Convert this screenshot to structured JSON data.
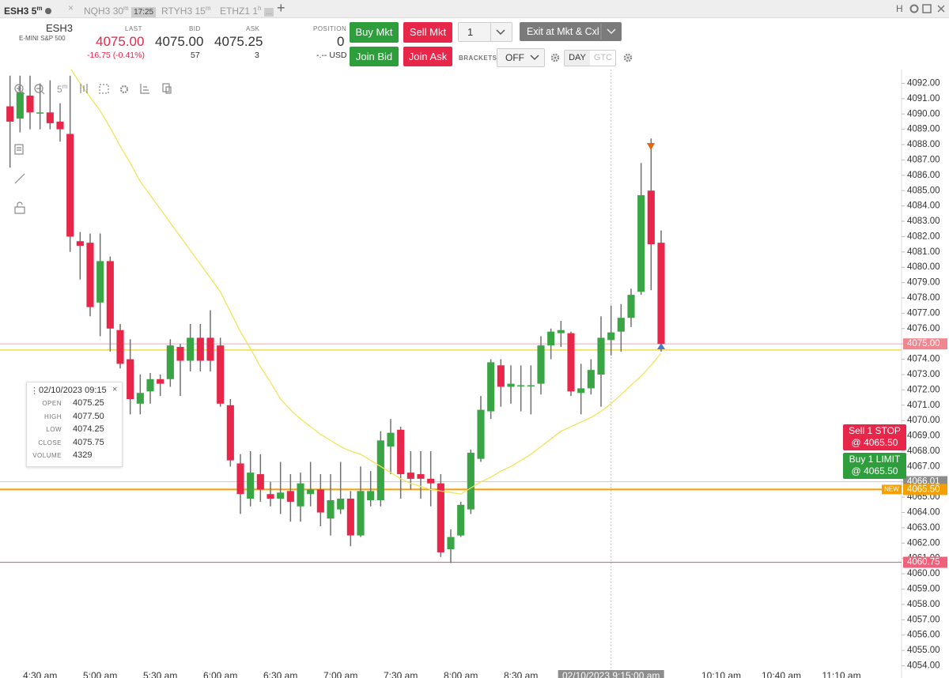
{
  "tabs": [
    {
      "symbol": "ESH3",
      "interval": "5",
      "unit": "m"
    },
    {
      "symbol": "NQH3",
      "interval": "30",
      "unit": "m",
      "time": "17:25"
    },
    {
      "symbol": "RTYH3",
      "interval": "15",
      "unit": "m"
    },
    {
      "symbol": "ETHZ1",
      "interval": "1",
      "unit": "h",
      "more": "..."
    }
  ],
  "toolbar_right": "H",
  "instrument": {
    "symbol": "ESH3",
    "name": "E-MINI S&P 500"
  },
  "quote": {
    "last_label": "LAST",
    "last": "4075.00",
    "change": "-16.75 (-0.41%)",
    "bid_label": "BID",
    "bid": "4075.00",
    "bid_size": "57",
    "ask_label": "ASK",
    "ask": "4075.25",
    "ask_size": "3",
    "position_label": "POSITION",
    "position": "0",
    "pnl": "-.-- USD"
  },
  "buttons": {
    "buy_mkt": "Buy Mkt",
    "sell_mkt": "Sell Mkt",
    "join_bid": "Join Bid",
    "join_ask": "Join Ask",
    "quantity": "1",
    "exit": "Exit at Mkt & Cxl",
    "brackets_label": "BRACKETS",
    "brackets": "OFF",
    "day": "DAY",
    "gtc": "GTC"
  },
  "chart_interval": {
    "value": "5",
    "unit": "m"
  },
  "tooltip": {
    "title": "02/10/2023 09:15",
    "rows": [
      [
        "OPEN",
        "4075.25"
      ],
      [
        "HIGH",
        "4077.50"
      ],
      [
        "LOW",
        "4074.25"
      ],
      [
        "CLOSE",
        "4075.75"
      ],
      [
        "VOLUME",
        "4329"
      ]
    ]
  },
  "orders": [
    {
      "label": "Sell 1 STOP",
      "price": "@ 4065.50",
      "color": "#e8264a"
    },
    {
      "label": "Buy 1 LIMIT",
      "price": "@ 4065.50",
      "color": "#2e9e3c"
    }
  ],
  "chart_data": {
    "type": "candlestick",
    "x": [
      255,
      260,
      265,
      270,
      275,
      280,
      285,
      290,
      295,
      300,
      305,
      310,
      315,
      320,
      325,
      330,
      335,
      340,
      345,
      350,
      355,
      360,
      365,
      370,
      375,
      380,
      385,
      390,
      395,
      400,
      405,
      410,
      415,
      420,
      425,
      430,
      435,
      440,
      445,
      450,
      455,
      460,
      465,
      470,
      475,
      480,
      485,
      490,
      495,
      500,
      505,
      510,
      515,
      520,
      525,
      530,
      535,
      540,
      545,
      550,
      555,
      560,
      565,
      570,
      575,
      580
    ],
    "open": [
      4090.5,
      4089.7,
      4091.2,
      4090.1,
      4090.1,
      4089.5,
      4088.7,
      4081.7,
      4081.6,
      4077.7,
      4080.4,
      4075.9,
      4074,
      4071.1,
      4071.9,
      4072.7,
      4072.7,
      4074.8,
      4073.9,
      4075.4,
      4075.4,
      4074.9,
      4071,
      4067.2,
      4064.9,
      4066.5,
      4065.2,
      4064.9,
      4065.4,
      4064.4,
      4065.2,
      4065.5,
      4063.6,
      4064.2,
      4064.9,
      4062.5,
      4064.8,
      4064.8,
      4068.3,
      4069.4,
      4066.6,
      4066.5,
      4066.2,
      4065.9,
      4061.6,
      4062.5,
      4064.2,
      4067.5,
      4070.6,
      4073.6,
      4072.2,
      4072.3,
      4072.3,
      4072.4,
      4074.9,
      4075.7,
      4075.7,
      4071.8,
      4072.1,
      4073,
      4075.25,
      4075.8,
      4076.7,
      4078.4,
      4085,
      4081.6
    ],
    "high": [
      4092.5,
      4092.5,
      4092.5,
      4092,
      4092.2,
      4090.7,
      4092.5,
      4082.3,
      4082.2,
      4082.2,
      4080.7,
      4076.3,
      4075.3,
      4073,
      4073.1,
      4073,
      4075.3,
      4075,
      4076.3,
      4076.3,
      4077.2,
      4075.4,
      4071.4,
      4067.8,
      4068,
      4067.8,
      4066,
      4067.3,
      4066.5,
      4066.6,
      4067.3,
      4066.5,
      4066.5,
      4067.3,
      4065.4,
      4067,
      4066.7,
      4069.3,
      4070.1,
      4069.6,
      4068,
      4068,
      4068,
      4066.5,
      4062.9,
      4064.7,
      4068.1,
      4071.6,
      4074,
      4074,
      4073.6,
      4073.6,
      4073.6,
      4075.5,
      4076,
      4076.5,
      4075.8,
      4073.7,
      4074,
      4076.8,
      4077.5,
      4077.6,
      4078.6,
      4086.8,
      4088.4,
      4082.4
    ],
    "low": [
      4086.5,
      4088.8,
      4089,
      4089,
      4089,
      4088.2,
      4081,
      4079.2,
      4076.8,
      4075.5,
      4074.5,
      4073.4,
      4070.4,
      4070.4,
      4071.1,
      4071.6,
      4072.2,
      4071.6,
      4073.2,
      4073.2,
      4073.2,
      4070.9,
      4067,
      4063.9,
      4064.4,
      4064.7,
      4064.4,
      4063.9,
      4063.4,
      4063.4,
      4064.4,
      4063.1,
      4062.5,
      4063.9,
      4061.8,
      4062.4,
      4064.4,
      4064.4,
      4066.5,
      4064.9,
      4065.5,
      4064.9,
      4064.4,
      4061.1,
      4060.7,
      4062.4,
      4063.9,
      4067.3,
      4070.1,
      4070.9,
      4071.1,
      4070.6,
      4070.4,
      4071.7,
      4074,
      4074.8,
      4071.6,
      4070.4,
      4071.7,
      4070.9,
      4074.25,
      4074.5,
      4076.1,
      4078.2,
      4078.5,
      4074.5
    ],
    "close": [
      4089.5,
      4091.4,
      4090.1,
      4090.1,
      4089.4,
      4089,
      4082,
      4081.4,
      4077.4,
      4080.4,
      4076,
      4073.7,
      4071.4,
      4071.8,
      4072.7,
      4072.4,
      4074.9,
      4073.9,
      4075.4,
      4073.9,
      4073.9,
      4071.1,
      4067.4,
      4065.2,
      4066.6,
      4065.5,
      4064.9,
      4065.3,
      4064.7,
      4065.9,
      4065.5,
      4064,
      4064.8,
      4064.9,
      4062.5,
      4065.4,
      4065.4,
      4068.7,
      4069.2,
      4066.5,
      4066.2,
      4066.2,
      4065.9,
      4061.4,
      4062.4,
      4064.5,
      4067.9,
      4070.7,
      4073.8,
      4072.2,
      4072.4,
      4072.3,
      4072.3,
      4074.9,
      4075.8,
      4075.9,
      4071.9,
      4072.1,
      4073.3,
      4075.4,
      4075.75,
      4076.7,
      4078.2,
      4084.7,
      4081.5,
      4075
    ],
    "up_color": "#3aa545",
    "down_color": "#e8264a",
    "ma": {
      "color": "#f2e35a",
      "values": [
        null,
        null,
        null,
        null,
        null,
        null,
        4093,
        4092,
        4091.1,
        4090.2,
        4089.1,
        4087.9,
        4086.8,
        4085.6,
        4084.7,
        4083.8,
        4082.9,
        4082,
        4081.1,
        4080.2,
        4079.3,
        4078.4,
        4077.1,
        4075.8,
        4074.7,
        4073.5,
        4072.5,
        4071.4,
        4070.7,
        4070.1,
        4069.6,
        4069.1,
        4068.7,
        4068.3,
        4068,
        4067.8,
        4067.4,
        4067,
        4066.6,
        4066.2,
        4065.9,
        4065.7,
        4065.5,
        4065.4,
        4065.3,
        4065.2,
        4065.6,
        4066,
        4066.3,
        4066.7,
        4067,
        4067.4,
        4067.8,
        4068.3,
        4068.8,
        4069.3,
        4069.6,
        4069.9,
        4070.2,
        4070.6,
        4071.1,
        4071.7,
        4072.3,
        4072.9,
        4073.6,
        4074.4
      ]
    },
    "xlim": [
      250,
      700
    ],
    "xticks": [
      {
        "value": 270,
        "label": "4:30 am"
      },
      {
        "value": 300,
        "label": "5:00 am"
      },
      {
        "value": 330,
        "label": "5:30 am"
      },
      {
        "value": 360,
        "label": "6:00 am"
      },
      {
        "value": 390,
        "label": "6:30 am"
      },
      {
        "value": 420,
        "label": "7:00 am"
      },
      {
        "value": 450,
        "label": "7:30 am"
      },
      {
        "value": 480,
        "label": "8:00 am"
      },
      {
        "value": 510,
        "label": "8:30 am"
      },
      {
        "value": 610,
        "label": "10:10 am"
      },
      {
        "value": 640,
        "label": "10:40 am"
      },
      {
        "value": 670,
        "label": "11:10 am"
      }
    ],
    "crosshair": {
      "value": 555,
      "label": "02/10/2023 9:15:00 am"
    },
    "ylim": [
      4053.2,
      4092.9
    ],
    "yticks": [
      {
        "value": 4054,
        "label": "4054.00"
      },
      {
        "value": 4055,
        "label": "4055.00"
      },
      {
        "value": 4056,
        "label": "4056.00"
      },
      {
        "value": 4057,
        "label": "4057.00"
      },
      {
        "value": 4058,
        "label": "4058.00"
      },
      {
        "value": 4059,
        "label": "4059.00"
      },
      {
        "value": 4060,
        "label": "4060.00"
      },
      {
        "value": 4061,
        "label": "4061.00"
      },
      {
        "value": 4062,
        "label": "4062.00"
      },
      {
        "value": 4063,
        "label": "4063.00"
      },
      {
        "value": 4064,
        "label": "4064.00"
      },
      {
        "value": 4065,
        "label": "4065.00"
      },
      {
        "value": 4066,
        "label": "4066.00"
      },
      {
        "value": 4067,
        "label": "4067.00"
      },
      {
        "value": 4068,
        "label": "4068.00"
      },
      {
        "value": 4069,
        "label": "4069.00"
      },
      {
        "value": 4070,
        "label": "4070.00"
      },
      {
        "value": 4071,
        "label": "4071.00"
      },
      {
        "value": 4072,
        "label": "4072.00"
      },
      {
        "value": 4073,
        "label": "4073.00"
      },
      {
        "value": 4074,
        "label": "4074.00"
      },
      {
        "value": 4075,
        "label": "4075.00"
      },
      {
        "value": 4076,
        "label": "4076.00"
      },
      {
        "value": 4077,
        "label": "4077.00"
      },
      {
        "value": 4078,
        "label": "4078.00"
      },
      {
        "value": 4079,
        "label": "4079.00"
      },
      {
        "value": 4080,
        "label": "4080.00"
      },
      {
        "value": 4081,
        "label": "4081.00"
      },
      {
        "value": 4082,
        "label": "4082.00"
      },
      {
        "value": 4083,
        "label": "4083.00"
      },
      {
        "value": 4084,
        "label": "4084.00"
      },
      {
        "value": 4085,
        "label": "4085.00"
      },
      {
        "value": 4086,
        "label": "4086.00"
      },
      {
        "value": 4087,
        "label": "4087.00"
      },
      {
        "value": 4088,
        "label": "4088.00"
      },
      {
        "value": 4089,
        "label": "4089.00"
      },
      {
        "value": 4090,
        "label": "4090.00"
      },
      {
        "value": 4091,
        "label": "4091.00"
      },
      {
        "value": 4092,
        "label": "4092.00"
      }
    ],
    "levels": [
      {
        "value": 4075,
        "label": "4075.00",
        "color": "#f0868f",
        "line": "#e9b3bf"
      },
      {
        "value": 4074.6,
        "line": "#e8d21d"
      },
      {
        "value": 4066.01,
        "label": "4066.01",
        "color": "#8c8c8c",
        "line": "#d0d0d0"
      },
      {
        "value": 4065.5,
        "label": "4065.50",
        "color": "#f5a000",
        "line": "#f5a000",
        "tag": "NEW"
      },
      {
        "value": 4060.75,
        "label": "4060.75",
        "color": "#f0607a",
        "line": "#f0607a"
      }
    ]
  }
}
